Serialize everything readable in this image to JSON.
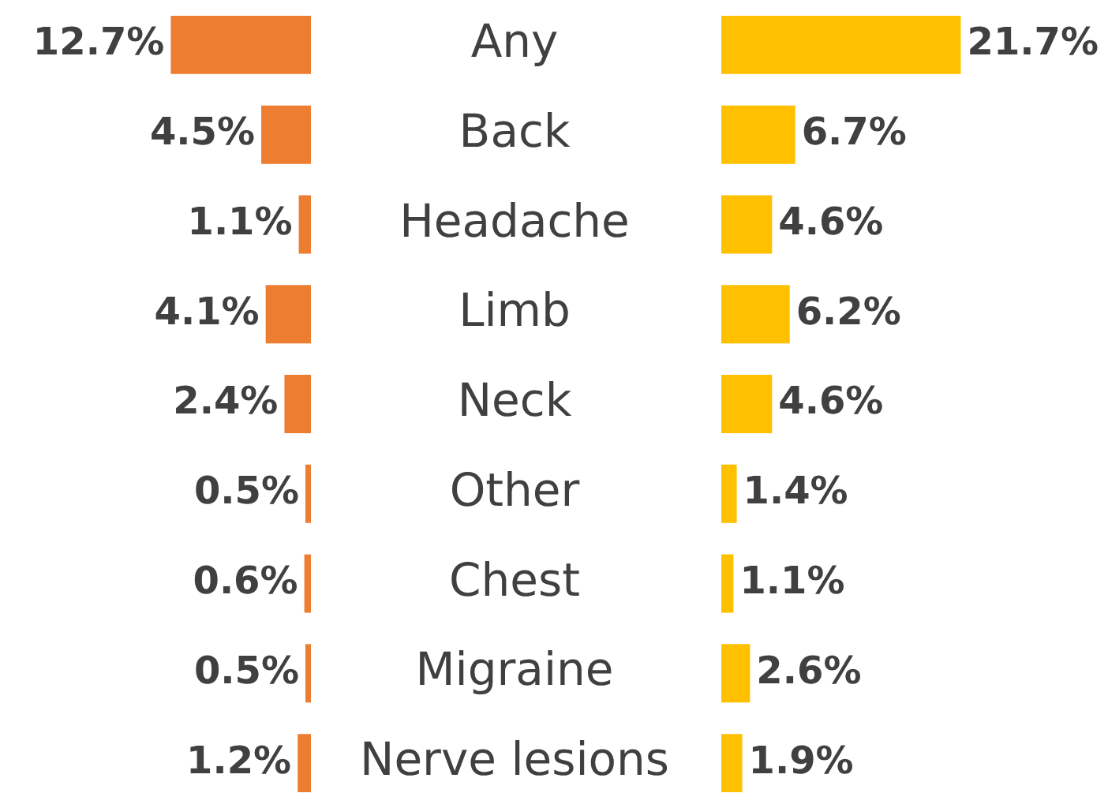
{
  "chart_data": [
    {
      "type": "bar",
      "orientation": "horizontal",
      "categories": [
        "Any",
        "Back",
        "Headache",
        "Limb",
        "Neck",
        "Other",
        "Chest",
        "Migraine",
        "Nerve lesions"
      ],
      "tick_labels": "y",
      "series": [
        {
          "color": "#ed7d31",
          "values": [
            12.7,
            4.5,
            1.1,
            4.1,
            2.4,
            0.5,
            0.6,
            0.5,
            1.2
          ],
          "value_labels": [
            "12.7%",
            "4.5%",
            "1.1%",
            "4.1%",
            "2.4%",
            "0.5%",
            "0.6%",
            "0.5%",
            "1.2%"
          ]
        }
      ]
    },
    {
      "type": "bar",
      "orientation": "horizontal",
      "categories": [
        null,
        null,
        null,
        null,
        null,
        null,
        null,
        null,
        null
      ],
      "tick_labels": false,
      "series": [
        {
          "color": "#ffc000",
          "values": [
            21.7,
            6.7,
            4.6,
            6.2,
            4.6,
            1.4,
            1.1,
            2.6,
            1.9
          ],
          "value_labels": [
            "21.7%",
            "6.7%",
            "4.6%",
            "6.2%",
            "4.6%",
            "1.4%",
            "1.1%",
            "2.6%",
            "1.9%"
          ]
        }
      ]
    }
  ]
}
